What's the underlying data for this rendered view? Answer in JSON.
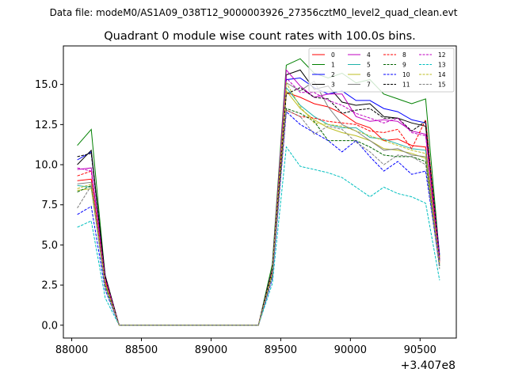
{
  "chart_data": {
    "type": "line",
    "suptitle": "Data file: modeM0/AS1A09_038T12_9000003926_27356cztM0_level2_quad_clean.evt",
    "title": "Quadrant 0 module wise count rates with 100.0s bins.",
    "xlabel": "",
    "ylabel": "",
    "x_offset_label": "+3.407e8",
    "xlim": [
      87940,
      90760
    ],
    "ylim": [
      -0.8,
      17.4
    ],
    "x_ticks": [
      88000,
      88500,
      89000,
      89500,
      90000,
      90500
    ],
    "x_tick_labels": [
      "88000",
      "88500",
      "89000",
      "89500",
      "90000",
      "90500"
    ],
    "y_ticks": [
      0,
      2.5,
      5,
      7.5,
      10,
      12.5,
      15
    ],
    "y_tick_labels": [
      "0.0",
      "2.5",
      "5.0",
      "7.5",
      "10.0",
      "12.5",
      "15.0"
    ],
    "grid": false,
    "legend_position": "top-right",
    "x": [
      88040,
      88140,
      88240,
      88340,
      88440,
      88540,
      88640,
      88740,
      88840,
      88940,
      89040,
      89140,
      89240,
      89340,
      89440,
      89540,
      89640,
      89740,
      89840,
      89940,
      90040,
      90140,
      90240,
      90340,
      90440,
      90540,
      90640
    ],
    "series": [
      {
        "name": "0",
        "color": "#ff0000",
        "dash": "solid",
        "values": [
          9.0,
          9.1,
          2.7,
          0.0,
          0,
          0,
          0,
          0,
          0,
          0,
          0,
          0,
          0,
          0,
          3.3,
          14.5,
          14.2,
          13.8,
          13.6,
          13.2,
          12.6,
          12.3,
          11.5,
          11.6,
          11.2,
          11.1,
          3.9
        ]
      },
      {
        "name": "1",
        "color": "#008000",
        "dash": "solid",
        "values": [
          11.2,
          12.2,
          3.0,
          0.0,
          0,
          0,
          0,
          0,
          0,
          0,
          0,
          0,
          0,
          0,
          3.8,
          16.2,
          16.6,
          15.7,
          15.4,
          15.7,
          15.1,
          15.3,
          14.4,
          14.1,
          13.8,
          14.1,
          4.3
        ]
      },
      {
        "name": "2",
        "color": "#0000ff",
        "dash": "solid",
        "values": [
          10.3,
          10.8,
          3.0,
          0.0,
          0,
          0,
          0,
          0,
          0,
          0,
          0,
          0,
          0,
          0,
          3.5,
          15.3,
          15.4,
          14.8,
          14.4,
          14.6,
          14.0,
          14.0,
          13.5,
          13.3,
          12.8,
          12.6,
          4.4
        ]
      },
      {
        "name": "3",
        "color": "#000000",
        "dash": "solid",
        "values": [
          10.0,
          10.9,
          3.1,
          0.0,
          0,
          0,
          0,
          0,
          0,
          0,
          0,
          0,
          0,
          0,
          3.5,
          15.6,
          15.9,
          14.7,
          14.9,
          13.9,
          13.7,
          13.8,
          13.0,
          12.9,
          12.6,
          12.4,
          4.0
        ]
      },
      {
        "name": "4",
        "color": "#c000c0",
        "dash": "solid",
        "values": [
          9.7,
          9.8,
          2.9,
          0.0,
          0,
          0,
          0,
          0,
          0,
          0,
          0,
          0,
          0,
          0,
          3.4,
          15.9,
          14.9,
          14.2,
          14.4,
          14.4,
          13.0,
          12.7,
          12.8,
          12.7,
          12.1,
          11.9,
          4.1
        ]
      },
      {
        "name": "5",
        "color": "#20b2aa",
        "dash": "solid",
        "values": [
          8.7,
          8.6,
          2.5,
          0.0,
          0,
          0,
          0,
          0,
          0,
          0,
          0,
          0,
          0,
          0,
          3.2,
          14.8,
          13.7,
          13.0,
          12.5,
          12.3,
          12.3,
          11.7,
          11.6,
          11.3,
          11.0,
          10.9,
          3.7
        ]
      },
      {
        "name": "6",
        "color": "#bcbd22",
        "dash": "solid",
        "values": [
          8.4,
          8.5,
          2.6,
          0.0,
          0,
          0,
          0,
          0,
          0,
          0,
          0,
          0,
          0,
          0,
          3.2,
          14.6,
          13.5,
          12.8,
          12.3,
          12.0,
          11.8,
          11.5,
          11.0,
          10.9,
          10.7,
          10.4,
          3.7
        ]
      },
      {
        "name": "7",
        "color": "#808080",
        "dash": "solid",
        "values": [
          8.8,
          8.9,
          2.6,
          0.0,
          0,
          0,
          0,
          0,
          0,
          0,
          0,
          0,
          0,
          0,
          3.3,
          15.1,
          14.6,
          15.2,
          13.6,
          12.5,
          12.1,
          11.5,
          10.9,
          11.0,
          10.6,
          10.5,
          3.8
        ]
      },
      {
        "name": "8",
        "color": "#ff0000",
        "dash": "dashed",
        "values": [
          9.3,
          9.6,
          2.8,
          0.0,
          0,
          0,
          0,
          0,
          0,
          0,
          0,
          0,
          0,
          0,
          3.4,
          13.4,
          13.0,
          12.9,
          12.7,
          12.6,
          12.5,
          12.1,
          12.0,
          12.2,
          11.0,
          12.8,
          4.2
        ]
      },
      {
        "name": "9",
        "color": "#006400",
        "dash": "dashed",
        "values": [
          8.3,
          8.7,
          2.5,
          0.0,
          0,
          0,
          0,
          0,
          0,
          0,
          0,
          0,
          0,
          0,
          3.2,
          13.5,
          13.2,
          12.7,
          11.5,
          11.5,
          11.5,
          11.1,
          10.6,
          10.5,
          10.5,
          10.2,
          3.6
        ]
      },
      {
        "name": "10",
        "color": "#0000ff",
        "dash": "dashed",
        "values": [
          6.9,
          7.4,
          2.2,
          0.0,
          0,
          0,
          0,
          0,
          0,
          0,
          0,
          0,
          0,
          0,
          2.9,
          13.3,
          12.5,
          12.0,
          11.5,
          10.8,
          11.5,
          10.5,
          9.6,
          10.2,
          9.4,
          9.6,
          3.7
        ]
      },
      {
        "name": "11",
        "color": "#000000",
        "dash": "dashed",
        "values": [
          10.5,
          10.7,
          3.0,
          0.0,
          0,
          0,
          0,
          0,
          0,
          0,
          0,
          0,
          0,
          0,
          3.5,
          14.4,
          14.8,
          14.2,
          14.1,
          13.2,
          13.4,
          13.5,
          12.9,
          12.9,
          12.1,
          12.7,
          4.1
        ]
      },
      {
        "name": "12",
        "color": "#c000c0",
        "dash": "dashed",
        "values": [
          9.8,
          9.6,
          2.9,
          0.0,
          0,
          0,
          0,
          0,
          0,
          0,
          0,
          0,
          0,
          0,
          3.4,
          15.4,
          14.5,
          14.5,
          14.0,
          13.7,
          13.2,
          12.9,
          12.6,
          12.9,
          12.0,
          11.8,
          4.1
        ]
      },
      {
        "name": "13",
        "color": "#00bfbf",
        "dash": "dashed",
        "values": [
          6.1,
          6.5,
          1.7,
          0.0,
          0,
          0,
          0,
          0,
          0,
          0,
          0,
          0,
          0,
          0,
          2.6,
          11.1,
          9.9,
          9.7,
          9.5,
          9.2,
          8.6,
          8.0,
          8.6,
          8.2,
          8.0,
          7.6,
          2.8
        ]
      },
      {
        "name": "14",
        "color": "#bcbd22",
        "dash": "dashed",
        "values": [
          8.5,
          8.8,
          2.6,
          0.0,
          0,
          0,
          0,
          0,
          0,
          0,
          0,
          0,
          0,
          0,
          3.3,
          15.1,
          13.6,
          12.6,
          12.5,
          12.4,
          12.1,
          11.8,
          11.5,
          11.2,
          10.9,
          10.7,
          3.8
        ]
      },
      {
        "name": "15",
        "color": "#808080",
        "dash": "dashed",
        "values": [
          7.3,
          8.7,
          2.3,
          0.0,
          0,
          0,
          0,
          0,
          0,
          0,
          0,
          0,
          0,
          0,
          3.0,
          13.4,
          13.0,
          11.9,
          12.4,
          12.2,
          11.4,
          10.8,
          10.0,
          10.6,
          10.5,
          10.0,
          3.5
        ]
      }
    ]
  }
}
